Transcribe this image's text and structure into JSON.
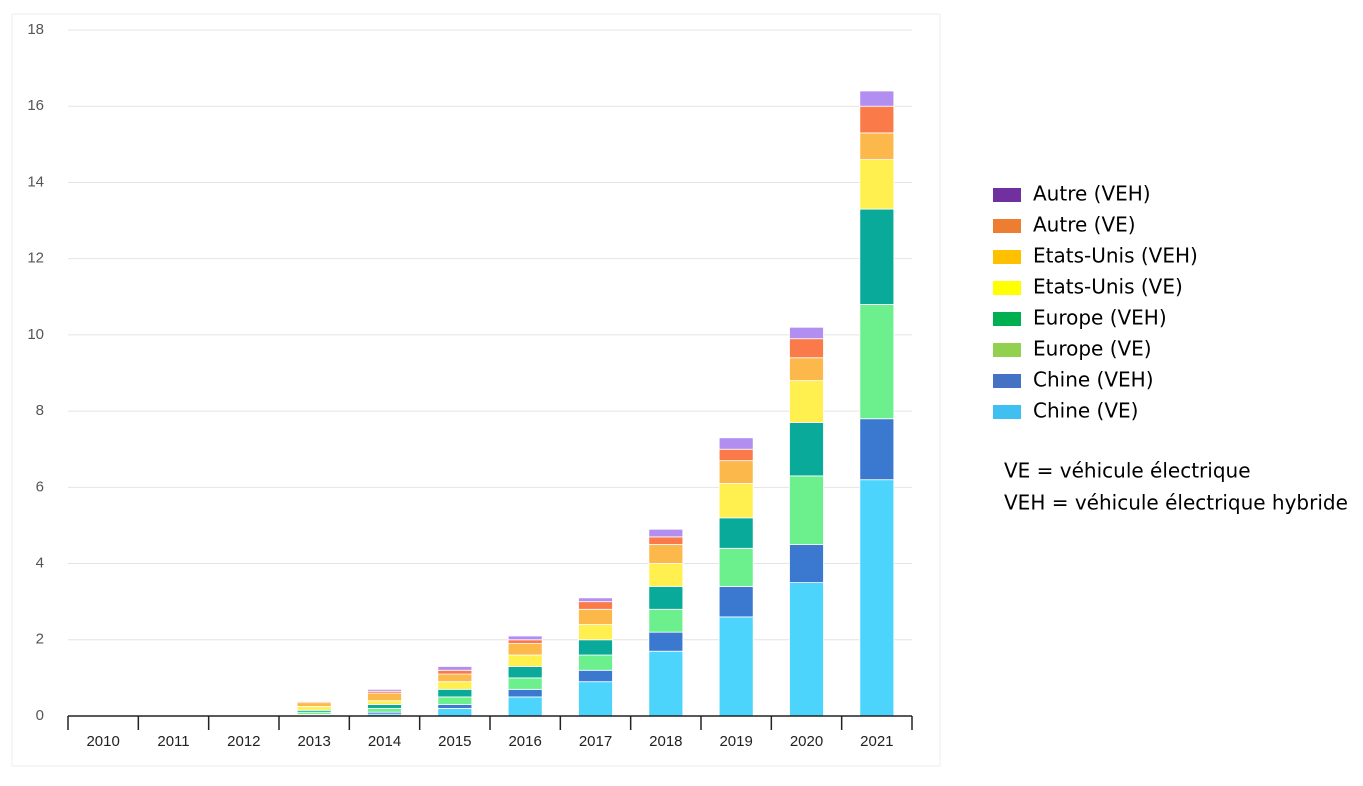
{
  "chart_data": {
    "type": "stacked_bar",
    "categories": [
      "2010",
      "2011",
      "2012",
      "2013",
      "2014",
      "2015",
      "2016",
      "2017",
      "2018",
      "2019",
      "2020",
      "2021"
    ],
    "series": [
      {
        "name": "Chine (VE)",
        "color": "#4dd4fd",
        "legend_color": "#40c0f0",
        "values": [
          0,
          0,
          0,
          0.02,
          0.05,
          0.2,
          0.5,
          0.9,
          1.7,
          2.6,
          3.5,
          6.2
        ]
      },
      {
        "name": "Chine (VEH)",
        "color": "#3b78d0",
        "legend_color": "#4472c4",
        "values": [
          0,
          0,
          0,
          0.02,
          0.05,
          0.1,
          0.2,
          0.3,
          0.5,
          0.8,
          1.0,
          1.6
        ]
      },
      {
        "name": "Europe (VE)",
        "color": "#6cf08e",
        "legend_color": "#92d050",
        "values": [
          0,
          0,
          0,
          0.06,
          0.1,
          0.2,
          0.3,
          0.4,
          0.6,
          1.0,
          1.8,
          3.0
        ]
      },
      {
        "name": "Europe (VEH)",
        "color": "#0aaa9a",
        "legend_color": "#00b050",
        "values": [
          0,
          0,
          0,
          0.05,
          0.1,
          0.2,
          0.3,
          0.4,
          0.6,
          0.8,
          1.4,
          2.5
        ]
      },
      {
        "name": "Etats-Unis (VE)",
        "color": "#fff050",
        "legend_color": "#ffff00",
        "values": [
          0,
          0,
          0,
          0.1,
          0.1,
          0.2,
          0.3,
          0.4,
          0.6,
          0.9,
          1.1,
          1.3
        ]
      },
      {
        "name": "Etats-Unis (VEH)",
        "color": "#fdb84c",
        "legend_color": "#ffc000",
        "values": [
          0,
          0,
          0,
          0.1,
          0.2,
          0.2,
          0.3,
          0.4,
          0.5,
          0.6,
          0.6,
          0.7
        ]
      },
      {
        "name": "Autre (VE)",
        "color": "#fb7a4a",
        "legend_color": "#ed7d31",
        "values": [
          0,
          0,
          0,
          0.03,
          0.05,
          0.1,
          0.1,
          0.2,
          0.2,
          0.3,
          0.5,
          0.7
        ]
      },
      {
        "name": "Autre (VEH)",
        "color": "#b28ef0",
        "legend_color": "#7030a0",
        "values": [
          0,
          0,
          0,
          0.02,
          0.05,
          0.1,
          0.1,
          0.1,
          0.2,
          0.3,
          0.3,
          0.4
        ]
      }
    ],
    "ylim": [
      0,
      18
    ],
    "yticks": [
      0,
      2,
      4,
      6,
      8,
      10,
      12,
      14,
      16,
      18
    ],
    "grid": true,
    "notes": [
      "VE = véhicule électrique",
      "VEH = véhicule électrique hybride"
    ]
  }
}
